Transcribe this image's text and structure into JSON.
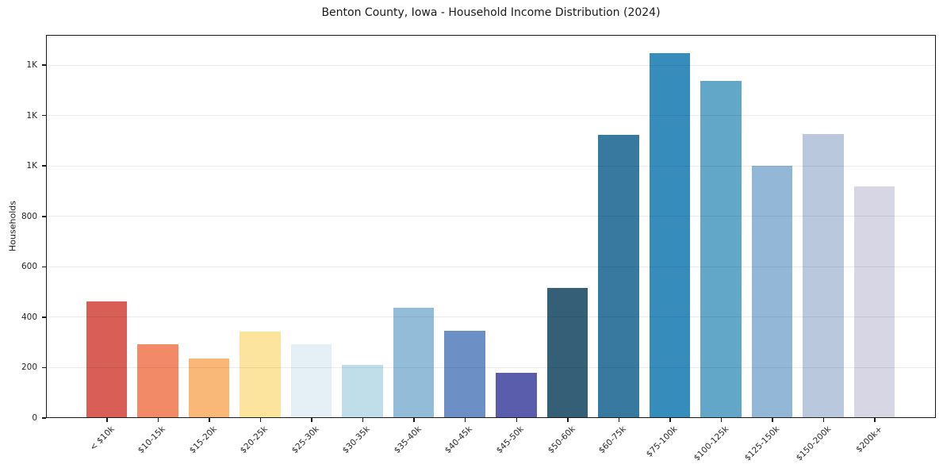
{
  "chart_data": {
    "type": "bar",
    "title": "Benton County, Iowa - Household Income Distribution (2024)",
    "xlabel": "",
    "ylabel": "Households",
    "categories": [
      "< $10k",
      "$10-15k",
      "$15-20k",
      "$20-25k",
      "$25-30k",
      "$30-35k",
      "$35-40k",
      "$40-45k",
      "$45-50k",
      "$50-60k",
      "$60-75k",
      "$75-100k",
      "$100-125k",
      "$125-150k",
      "$150-200k",
      "$200k+"
    ],
    "values": [
      460,
      288,
      234,
      340,
      290,
      208,
      435,
      343,
      177,
      514,
      1120,
      1445,
      1335,
      997,
      1124,
      916
    ],
    "bar_colors": [
      "#d85e56",
      "#f28a68",
      "#f9b877",
      "#fce39e",
      "#e4f0f5",
      "#bfdee9",
      "#93bcd8",
      "#6c90c5",
      "#5a5dab",
      "#355f76",
      "#38799f",
      "#368cba",
      "#62a7c7",
      "#93b8d7",
      "#b9c8dd",
      "#d6d6e4"
    ],
    "yticks": [
      {
        "value": 0,
        "label": "0"
      },
      {
        "value": 200,
        "label": "200"
      },
      {
        "value": 400,
        "label": "400"
      },
      {
        "value": 600,
        "label": "600"
      },
      {
        "value": 800,
        "label": "800"
      },
      {
        "value": 1000,
        "label": "1K"
      },
      {
        "value": 1200,
        "label": "1K"
      },
      {
        "value": 1400,
        "label": "1K"
      }
    ],
    "ylim": [
      0,
      1520
    ],
    "bar_width_fraction": 0.8,
    "grid": "horizontal",
    "legend": "none"
  }
}
